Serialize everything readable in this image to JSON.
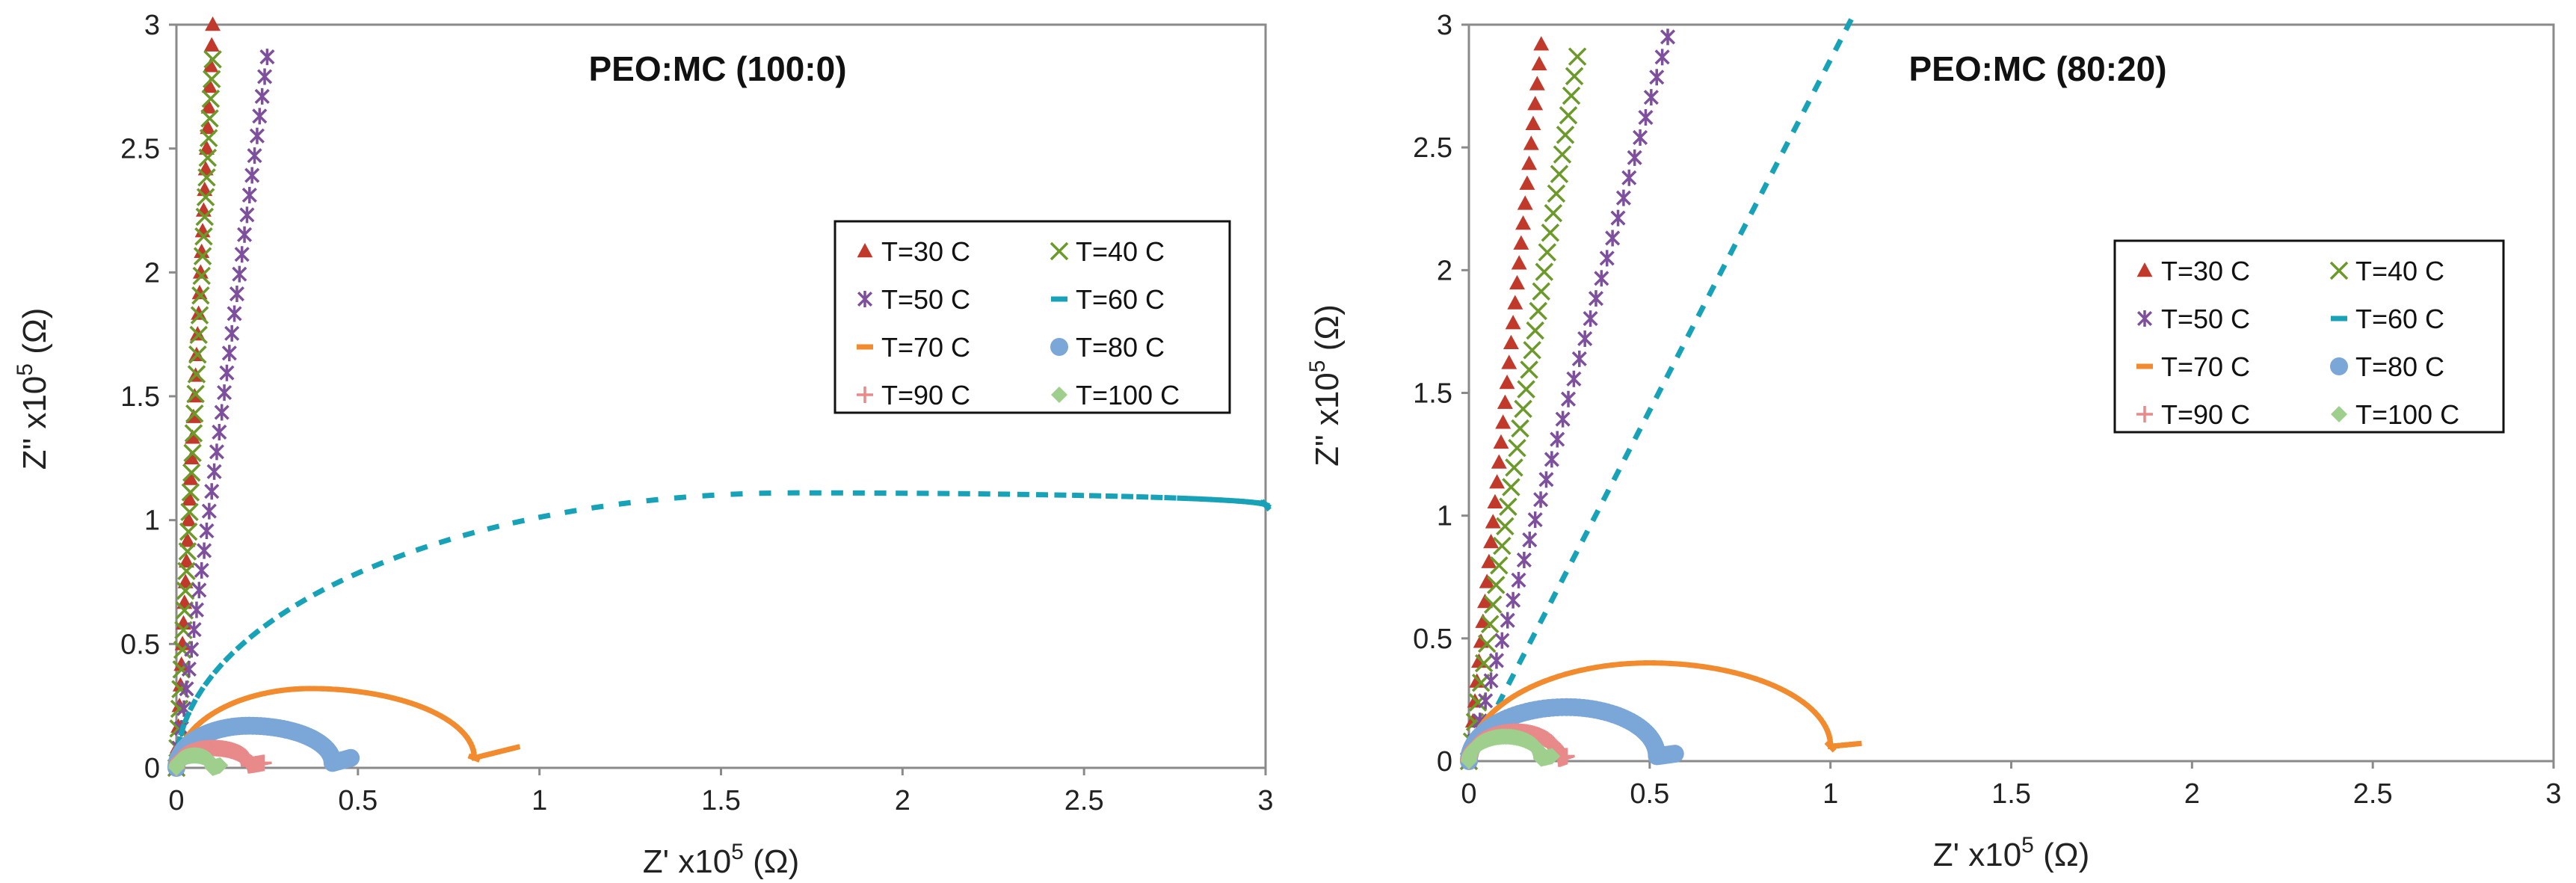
{
  "chart_data": [
    {
      "type": "scatter",
      "title": "PEO:MC (100:0)",
      "xlabel": "Z'  x10",
      "ylabel": "Z\"  x10",
      "axis_exponent": "5",
      "axis_unit": "(Ω)",
      "xlim": [
        0,
        3
      ],
      "ylim": [
        0,
        3
      ],
      "xticks": [
        "0",
        "0.5",
        "1",
        "1.5",
        "2",
        "2.5",
        "3"
      ],
      "yticks": [
        "0",
        "0.5",
        "1",
        "1.5",
        "2",
        "2.5",
        "3"
      ],
      "legend_position": "right",
      "series": [
        {
          "name": "T=30 C",
          "marker": "triangle",
          "color": "#c0392b",
          "shape": "line",
          "from": [
            0,
            0
          ],
          "to": [
            0.1,
            3.0
          ]
        },
        {
          "name": "T=40 C",
          "marker": "x",
          "color": "#6b9a2a",
          "shape": "line",
          "from": [
            0,
            0
          ],
          "to": [
            0.1,
            2.86
          ]
        },
        {
          "name": "T=50 C",
          "marker": "star",
          "color": "#7d4f9c",
          "shape": "line",
          "from": [
            0,
            0
          ],
          "to": [
            0.25,
            2.87
          ]
        },
        {
          "name": "T=60 C",
          "marker": "dash",
          "color": "#17a2b8",
          "shape": "arc",
          "start": [
            0.0,
            0.0
          ],
          "peak": [
            1.7,
            1.11
          ],
          "end": [
            3.0,
            1.06
          ]
        },
        {
          "name": "T=70 C",
          "marker": "dash",
          "color": "#f28a2e",
          "shape": "arc",
          "start": [
            0.0,
            0.0
          ],
          "peak": [
            0.37,
            0.32
          ],
          "end": [
            0.93,
            0.08
          ],
          "hook": [
            0.82,
            0.04
          ]
        },
        {
          "name": "T=80 C",
          "marker": "circle",
          "color": "#7aa6d8",
          "shape": "arc",
          "start": [
            0.0,
            0.0
          ],
          "peak": [
            0.2,
            0.17
          ],
          "end": [
            0.48,
            0.04
          ],
          "hook": [
            0.43,
            0.02
          ]
        },
        {
          "name": "T=90 C",
          "marker": "plus",
          "color": "#e8898a",
          "shape": "arc",
          "start": [
            0.0,
            0.0
          ],
          "peak": [
            0.1,
            0.08
          ],
          "end": [
            0.24,
            0.02
          ],
          "hook": [
            0.2,
            0.01
          ]
        },
        {
          "name": "T=100 C",
          "marker": "diamond",
          "color": "#9fcf8c",
          "shape": "arc",
          "start": [
            0.0,
            0.0
          ],
          "peak": [
            0.05,
            0.05
          ],
          "end": [
            0.12,
            0.01
          ],
          "hook": [
            0.1,
            0.0
          ]
        }
      ]
    },
    {
      "type": "scatter",
      "title": "PEO:MC (80:20)",
      "xlabel": "Z'  x10",
      "ylabel": "Z\"  x10",
      "axis_exponent": "5",
      "axis_unit": "(Ω)",
      "xlim": [
        0,
        3
      ],
      "ylim": [
        0,
        3
      ],
      "xticks": [
        "0",
        "0.5",
        "1",
        "1.5",
        "2",
        "2.5",
        "3"
      ],
      "yticks": [
        "0",
        "0.5",
        "1",
        "1.5",
        "2",
        "2.5",
        "3"
      ],
      "legend_position": "right",
      "series": [
        {
          "name": "T=30 C",
          "marker": "triangle",
          "color": "#c0392b",
          "shape": "line",
          "from": [
            0,
            0
          ],
          "to": [
            0.2,
            2.92
          ]
        },
        {
          "name": "T=40 C",
          "marker": "x",
          "color": "#6b9a2a",
          "shape": "line",
          "from": [
            0,
            0
          ],
          "to": [
            0.3,
            2.87
          ]
        },
        {
          "name": "T=50 C",
          "marker": "star",
          "color": "#7d4f9c",
          "shape": "line",
          "from": [
            0,
            0
          ],
          "to": [
            0.55,
            2.95
          ]
        },
        {
          "name": "T=60 C",
          "marker": "dash",
          "color": "#17a2b8",
          "shape": "line",
          "from": [
            0,
            0
          ],
          "to": [
            1.05,
            3.0
          ]
        },
        {
          "name": "T=70 C",
          "marker": "dash",
          "color": "#f28a2e",
          "shape": "arc",
          "start": [
            0.0,
            0.0
          ],
          "peak": [
            0.5,
            0.4
          ],
          "end": [
            1.07,
            0.07
          ],
          "hook": [
            1.0,
            0.06
          ]
        },
        {
          "name": "T=80 C",
          "marker": "circle",
          "color": "#7aa6d8",
          "shape": "arc",
          "start": [
            0.0,
            0.0
          ],
          "peak": [
            0.27,
            0.22
          ],
          "end": [
            0.57,
            0.03
          ],
          "hook": [
            0.52,
            0.02
          ]
        },
        {
          "name": "T=90 C",
          "marker": "plus",
          "color": "#e8898a",
          "shape": "arc",
          "start": [
            0.0,
            0.0
          ],
          "peak": [
            0.13,
            0.12
          ],
          "end": [
            0.27,
            0.02
          ],
          "hook": [
            0.25,
            0.01
          ]
        },
        {
          "name": "T=100 C",
          "marker": "diamond",
          "color": "#9fcf8c",
          "shape": "arc",
          "start": [
            0.0,
            0.0
          ],
          "peak": [
            0.1,
            0.1
          ],
          "end": [
            0.23,
            0.02
          ],
          "hook": [
            0.2,
            0.01
          ]
        }
      ]
    }
  ]
}
